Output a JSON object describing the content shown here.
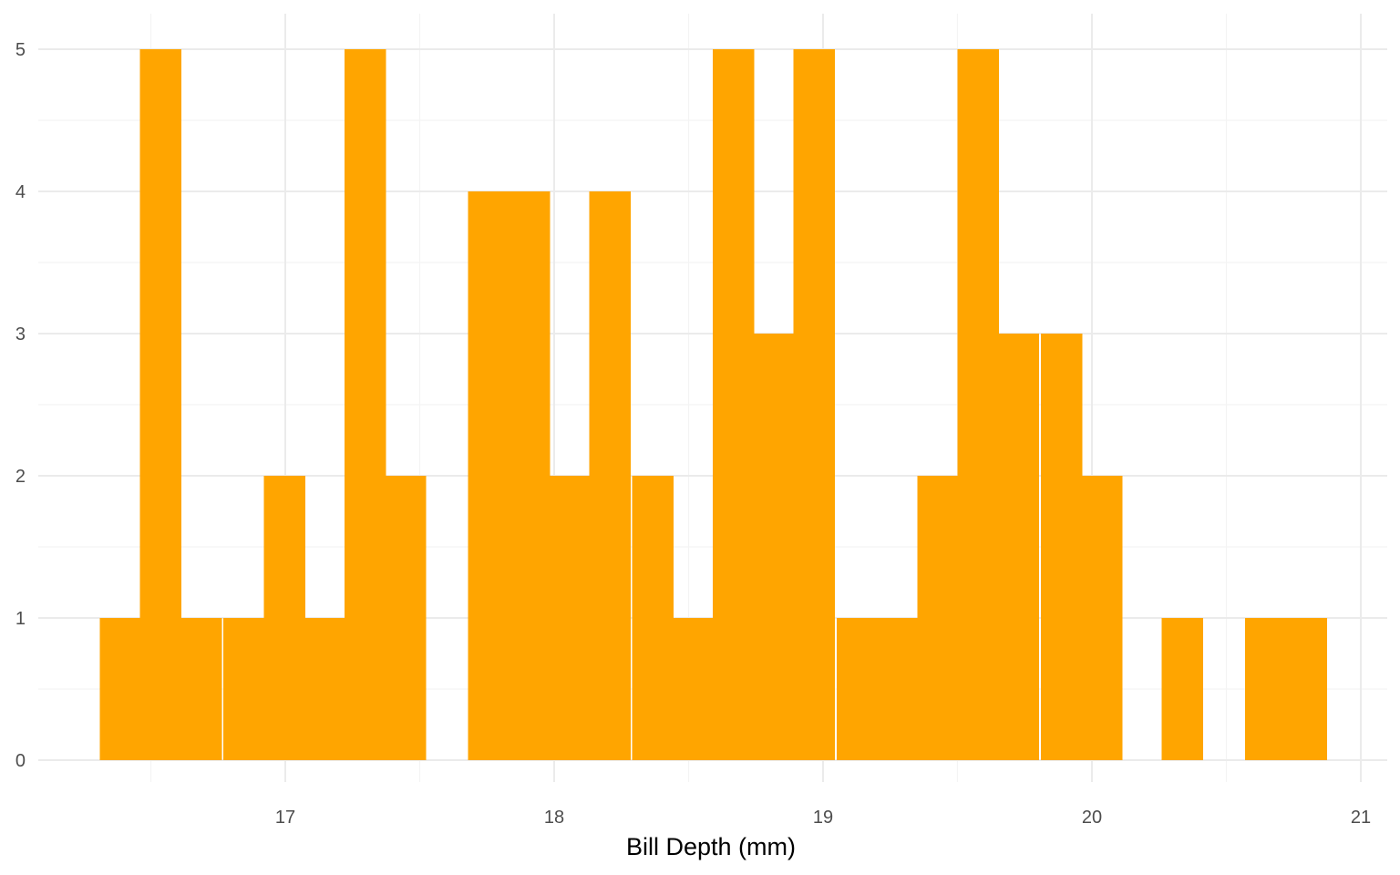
{
  "chart_data": {
    "type": "bar",
    "subtype": "histogram",
    "title": "",
    "xlabel": "Bill Depth (mm)",
    "ylabel": "",
    "xlim": [
      16.2,
      21.1
    ],
    "ylim": [
      0,
      5
    ],
    "x_ticks": [
      17,
      18,
      19,
      20,
      21
    ],
    "x_tick_labels": [
      "17",
      "18",
      "19",
      "20",
      "21"
    ],
    "y_ticks": [
      0,
      1,
      2,
      3,
      4,
      5
    ],
    "y_tick_labels": [
      "0",
      "1",
      "2",
      "3",
      "4",
      "5"
    ],
    "bin_width": 0.152,
    "bins_start": [
      16.31,
      16.46,
      16.61,
      16.77,
      16.92,
      17.07,
      17.22,
      17.37,
      17.53,
      17.68,
      17.83,
      17.98,
      18.13,
      18.29,
      18.44,
      18.59,
      18.74,
      18.89,
      19.05,
      19.2,
      19.35,
      19.5,
      19.65,
      19.81,
      19.96,
      20.11,
      20.26,
      20.41,
      20.57,
      20.72
    ],
    "values": [
      1,
      5,
      1,
      1,
      2,
      1,
      5,
      2,
      0,
      4,
      4,
      2,
      4,
      2,
      1,
      5,
      3,
      5,
      1,
      1,
      2,
      5,
      3,
      3,
      2,
      0,
      1,
      0,
      1,
      1
    ],
    "bar_color": "#FFA500",
    "grid": true,
    "legend": "none"
  }
}
